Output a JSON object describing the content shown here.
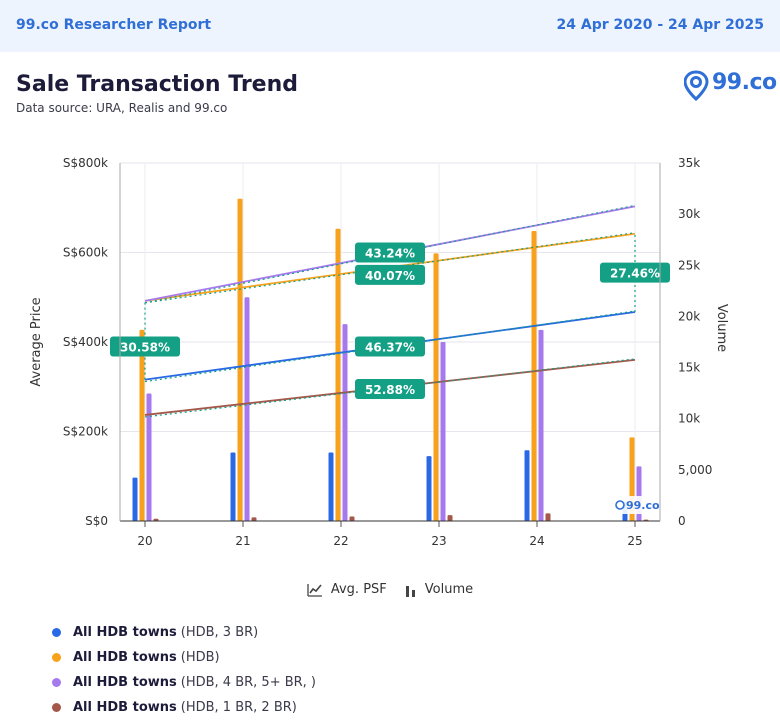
{
  "header": {
    "brand": "99.co Researcher Report",
    "date_range": "24 Apr 2020 - 24 Apr 2025"
  },
  "title": "Sale Transaction Trend",
  "subtitle": "Data source: URA, Realis and 99.co",
  "logo_text": "99.co",
  "watermark_text": "99.co",
  "legend_toggles": [
    {
      "icon": "line-chart-icon",
      "label": "Avg. PSF"
    },
    {
      "icon": "bar-chart-icon",
      "label": "Volume"
    }
  ],
  "colors": {
    "accent": "#2f6fd6",
    "label_bg": "#14a085",
    "grid": "#d8d8e0"
  },
  "chart_data": {
    "type": "bar",
    "categories": [
      "20",
      "21",
      "22",
      "23",
      "24",
      "25"
    ],
    "ylabel": "Average Price",
    "y2label": "Volume",
    "ylim": [
      0,
      800000
    ],
    "y2lim": [
      0,
      35000
    ],
    "y_ticks": [
      "S$0",
      "S$200k",
      "S$400k",
      "S$600k",
      "S$800k"
    ],
    "y2_ticks": [
      "0",
      "5,000",
      "10k",
      "15k",
      "20k",
      "25k",
      "30k",
      "35k"
    ],
    "series": [
      {
        "name": "All HDB towns",
        "detail": "(HDB, 3 BR)",
        "color": "#2968e6",
        "values": [
          97000,
          153000,
          153000,
          145000,
          158000,
          43000
        ]
      },
      {
        "name": "All HDB towns",
        "detail": "(HDB)",
        "color": "#f7a11c",
        "values": [
          427000,
          720000,
          653000,
          598000,
          648000,
          187000
        ]
      },
      {
        "name": "All HDB towns",
        "detail": "(HDB, 4 BR, 5+ BR, )",
        "color": "#a779ee",
        "values": [
          285000,
          500000,
          440000,
          400000,
          427000,
          122000
        ]
      },
      {
        "name": "All HDB towns",
        "detail": "(HDB, 1 BR, 2 BR)",
        "color": "#a5574a",
        "values": [
          5000,
          8000,
          10000,
          13000,
          17000,
          3000
        ]
      }
    ],
    "trend_lines": [
      {
        "color": "#2968e6",
        "start": 316000,
        "end": 467000
      },
      {
        "color": "#f7a11c",
        "start": 492000,
        "end": 642000
      },
      {
        "color": "#a779ee",
        "start": 492000,
        "end": 703000
      },
      {
        "color": "#a5574a",
        "start": 237000,
        "end": 360000
      }
    ],
    "growth_labels": [
      {
        "text": "30.58%",
        "x": "20",
        "y": 390000
      },
      {
        "text": "43.24%",
        "x": "22.5",
        "y": 600000
      },
      {
        "text": "40.07%",
        "x": "22.5",
        "y": 550000
      },
      {
        "text": "27.46%",
        "x": "25",
        "y": 555000
      },
      {
        "text": "46.37%",
        "x": "22.5",
        "y": 390000
      },
      {
        "text": "52.88%",
        "x": "22.5",
        "y": 295000
      }
    ]
  }
}
